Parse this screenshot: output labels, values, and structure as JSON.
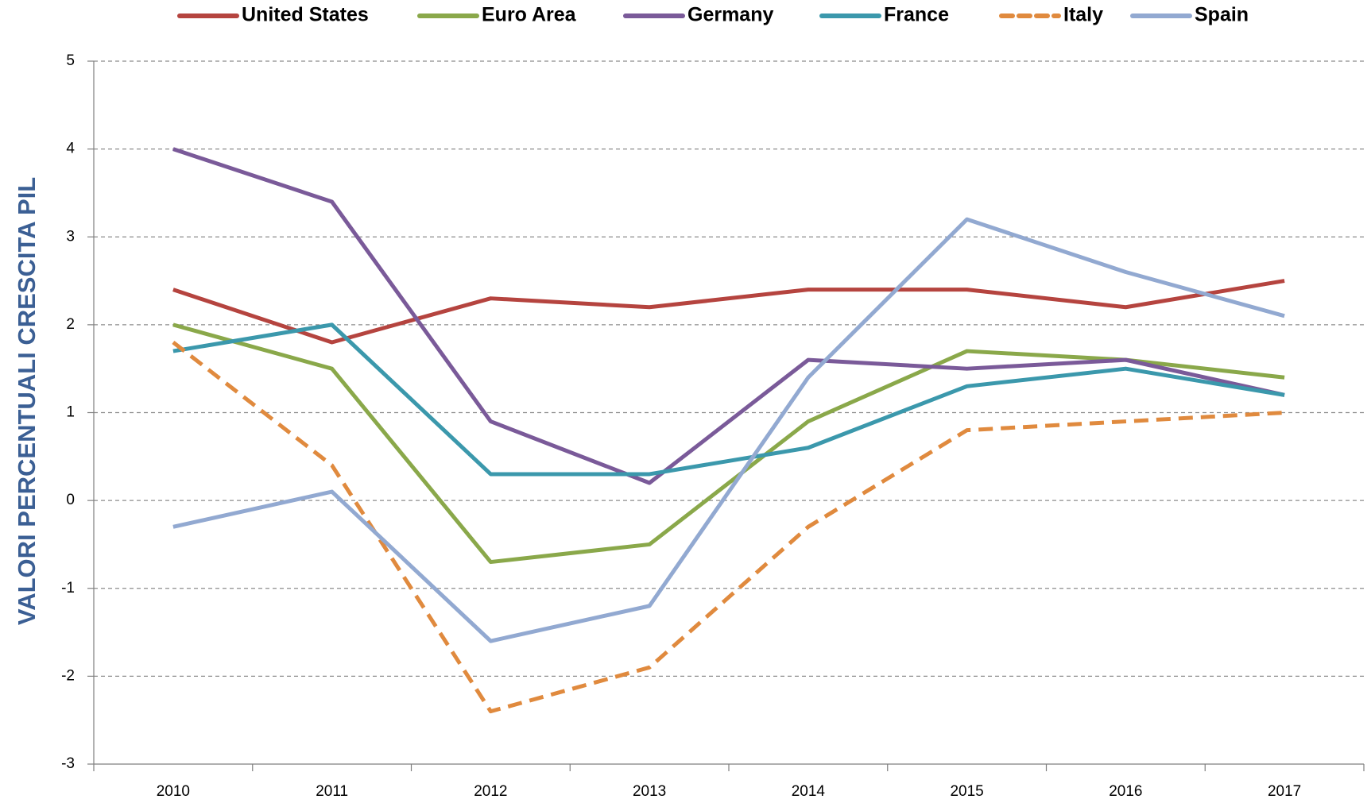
{
  "chart_data": {
    "type": "line",
    "y_label": "VALORI PERCENTUALI CRESCITA PIL",
    "categories": [
      "2010",
      "2011",
      "2012",
      "2013",
      "2014",
      "2015",
      "2016",
      "2017"
    ],
    "series": [
      {
        "name": "United States",
        "color": "#b5443f",
        "values": [
          2.4,
          1.8,
          2.3,
          2.2,
          2.4,
          2.4,
          2.2,
          2.5
        ]
      },
      {
        "name": "Euro Area",
        "color": "#8aa84a",
        "values": [
          2.0,
          1.5,
          -0.7,
          -0.5,
          0.9,
          1.7,
          1.6,
          1.4
        ]
      },
      {
        "name": "Germany",
        "color": "#7a5a99",
        "values": [
          4.0,
          3.4,
          0.9,
          0.2,
          1.6,
          1.5,
          1.6,
          1.2
        ]
      },
      {
        "name": "France",
        "color": "#3b98ac",
        "values": [
          1.7,
          2.0,
          0.3,
          0.3,
          0.6,
          1.3,
          1.5,
          1.2
        ]
      },
      {
        "name": "Italy",
        "color": "#e08a3e",
        "dashed": true,
        "values": [
          1.8,
          0.4,
          -2.4,
          -1.9,
          -0.3,
          0.8,
          0.9,
          1.0
        ]
      },
      {
        "name": "Spain",
        "color": "#92a9d1",
        "values": [
          -0.3,
          0.1,
          -1.6,
          -1.2,
          1.4,
          3.2,
          2.6,
          2.1
        ]
      }
    ],
    "ylim": [
      -3,
      5
    ],
    "yticks": [
      -3,
      -2,
      -1,
      0,
      1,
      2,
      3,
      4,
      5
    ],
    "grid": true,
    "legend": "top"
  }
}
